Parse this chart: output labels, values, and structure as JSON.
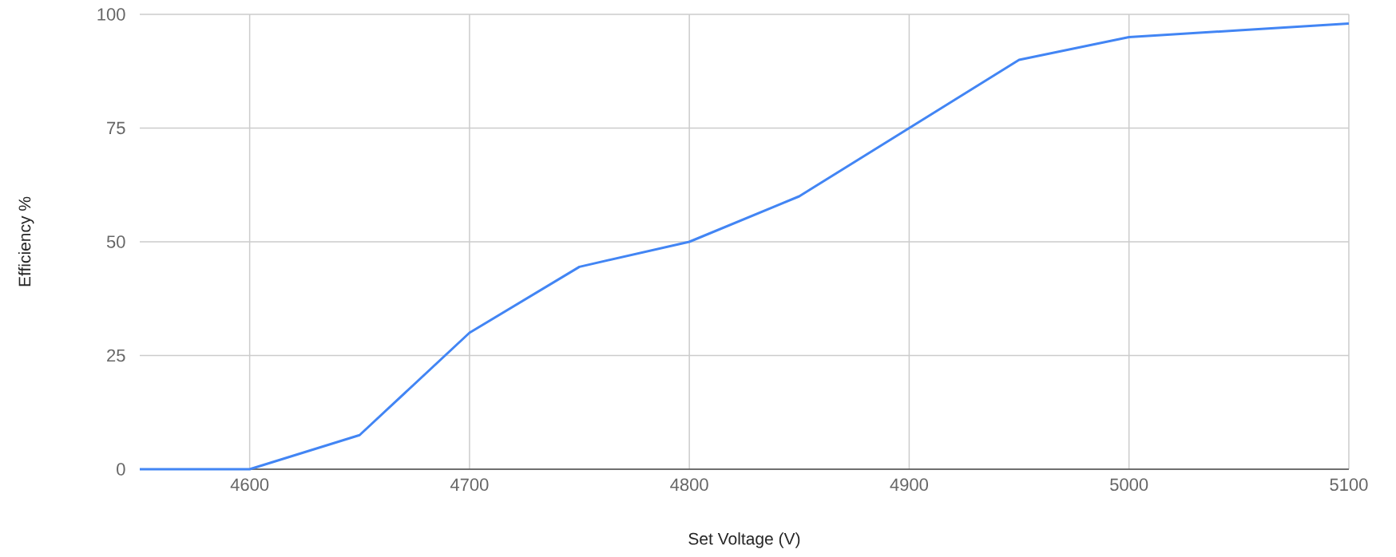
{
  "chart_data": {
    "type": "line",
    "xlabel": "Set Voltage (V)",
    "ylabel": "Efficiency %",
    "x": [
      4550,
      4600,
      4650,
      4700,
      4750,
      4800,
      4850,
      4900,
      4950,
      5000,
      5050,
      5100
    ],
    "series": [
      {
        "color": "#4285f4",
        "values": [
          0,
          0,
          7.5,
          30,
          44.5,
          50,
          60,
          75,
          90,
          95,
          96.5,
          98
        ]
      }
    ],
    "xlim": [
      4550,
      5100
    ],
    "xticks": [
      4600,
      4700,
      4800,
      4900,
      5000,
      5100
    ],
    "ylim": [
      0,
      100
    ],
    "yticks": [
      0,
      25,
      50,
      75,
      100
    ],
    "grid": true,
    "marker": "none"
  }
}
